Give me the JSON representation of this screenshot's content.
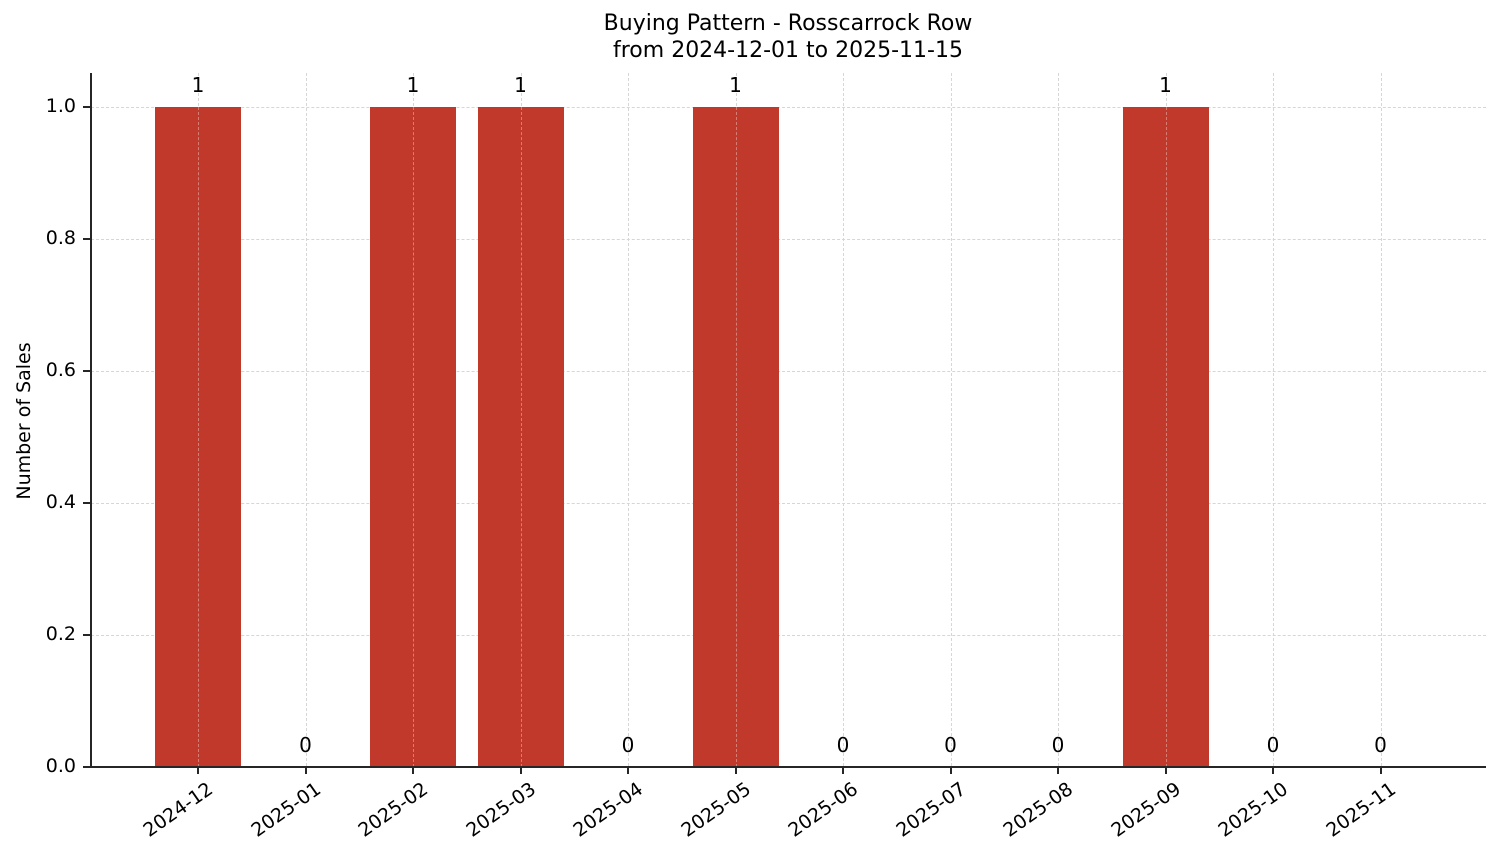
{
  "chart_data": {
    "type": "bar",
    "title": "Buying Pattern - Rosscarrock Row",
    "subtitle": "from 2024-12-01 to 2025-11-15",
    "xlabel": "",
    "ylabel": "Number of Sales",
    "categories": [
      "2024-12",
      "2025-01",
      "2025-02",
      "2025-03",
      "2025-04",
      "2025-05",
      "2025-06",
      "2025-07",
      "2025-08",
      "2025-09",
      "2025-10",
      "2025-11"
    ],
    "values": [
      1,
      0,
      1,
      1,
      0,
      1,
      0,
      0,
      0,
      1,
      0,
      0
    ],
    "bar_labels": [
      "1",
      "0",
      "1",
      "1",
      "0",
      "1",
      "0",
      "0",
      "0",
      "1",
      "0",
      "0"
    ],
    "ylim": [
      0,
      1.05
    ],
    "yticks": [
      "0.0",
      "0.2",
      "0.4",
      "0.6",
      "0.8",
      "1.0"
    ],
    "grid": true,
    "legend": null,
    "bar_color": "#c0392b"
  }
}
